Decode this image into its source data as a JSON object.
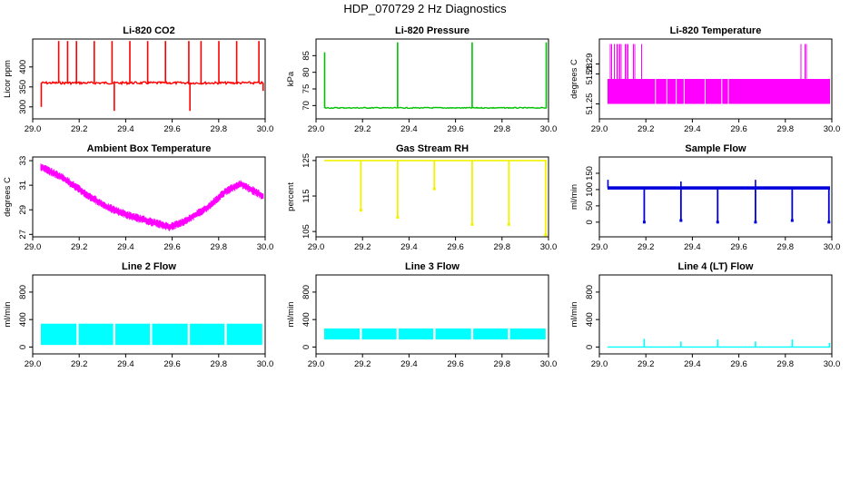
{
  "figure": {
    "title": "HDP_070729  2 Hz Diagnostics"
  },
  "chart_data": [
    {
      "type": "line",
      "title": "Li-820 CO2",
      "ylabel": "Licor ppm",
      "color": "#ff0000",
      "xlim": [
        29.0,
        30.0
      ],
      "ylim": [
        270,
        470
      ],
      "xticks": [
        "29.0",
        "29.2",
        "29.4",
        "29.6",
        "29.8",
        "30.0"
      ],
      "yticks": [
        {
          "value": 300,
          "label": "300"
        },
        {
          "value": 350,
          "label": "350"
        },
        {
          "value": 400,
          "label": "400"
        }
      ],
      "series": [
        {
          "name": "Li-820 CO2",
          "baseline": 360,
          "noise": 3,
          "spikes": [
            {
              "x": 29.002,
              "to": 300
            },
            {
              "x": 29.08,
              "to": 465
            },
            {
              "x": 29.12,
              "to": 465
            },
            {
              "x": 29.16,
              "to": 465
            },
            {
              "x": 29.24,
              "to": 465
            },
            {
              "x": 29.32,
              "to": 465
            },
            {
              "x": 29.33,
              "to": 290
            },
            {
              "x": 29.4,
              "to": 465
            },
            {
              "x": 29.48,
              "to": 465
            },
            {
              "x": 29.56,
              "to": 465
            },
            {
              "x": 29.665,
              "to": 465
            },
            {
              "x": 29.67,
              "to": 290
            },
            {
              "x": 29.72,
              "to": 465
            },
            {
              "x": 29.8,
              "to": 465
            },
            {
              "x": 29.88,
              "to": 465
            },
            {
              "x": 29.98,
              "to": 465
            },
            {
              "x": 29.999,
              "to": 340
            }
          ]
        }
      ]
    },
    {
      "type": "line",
      "title": "Li-820 Pressure",
      "ylabel": "kPa",
      "color": "#00c000",
      "xlim": [
        29.0,
        30.0
      ],
      "ylim": [
        66,
        90
      ],
      "xticks": [
        "29.0",
        "29.2",
        "29.4",
        "29.6",
        "29.8",
        "30.0"
      ],
      "yticks": [
        {
          "value": 70,
          "label": "70"
        },
        {
          "value": 75,
          "label": "75"
        },
        {
          "value": 80,
          "label": "80"
        },
        {
          "value": 85,
          "label": "85"
        }
      ],
      "series": [
        {
          "name": "Li-820 Pressure",
          "baseline": 69.3,
          "noise": 0.15,
          "spikes": [
            {
              "x": 29.002,
              "to": 86
            },
            {
              "x": 29.33,
              "to": 89
            },
            {
              "x": 29.665,
              "to": 89
            },
            {
              "x": 29.998,
              "to": 89
            }
          ]
        }
      ]
    },
    {
      "type": "line",
      "title": "Li-820 Temperature",
      "ylabel": "degrees C",
      "color": "#ff00ff",
      "xlim": [
        29.0,
        30.0
      ],
      "ylim": [
        51.235,
        51.315
      ],
      "xticks": [
        "29.0",
        "29.2",
        "29.4",
        "29.6",
        "29.8",
        "30.0"
      ],
      "yticks": [
        {
          "value": 51.25,
          "label": "51.25"
        },
        {
          "value": 51.28,
          "label": "51.28"
        },
        {
          "value": 51.29,
          "label": "51.29"
        }
      ],
      "series": [
        {
          "name": "Li-820 Temperature",
          "low": 51.25,
          "high": 51.275,
          "peak": 51.31
        }
      ]
    },
    {
      "type": "line",
      "title": "Ambient Box Temperature",
      "ylabel": "degrees C",
      "color": "#ff00ff",
      "xlim": [
        29.0,
        30.0
      ],
      "ylim": [
        26.8,
        33.3
      ],
      "xticks": [
        "29.0",
        "29.2",
        "29.4",
        "29.6",
        "29.8",
        "30.0"
      ],
      "yticks": [
        {
          "value": 27,
          "label": "27"
        },
        {
          "value": 29,
          "label": "29"
        },
        {
          "value": 31,
          "label": "31"
        },
        {
          "value": 33,
          "label": "33"
        }
      ],
      "series": [
        {
          "name": "Ambient Box Temperature",
          "band": 0.7,
          "x": [
            29.0,
            29.1,
            29.2,
            29.3,
            29.4,
            29.5,
            29.58,
            29.65,
            29.75,
            29.83,
            29.9,
            29.95,
            30.0
          ],
          "y": [
            32.5,
            31.6,
            30.3,
            29.2,
            28.5,
            28.0,
            27.6,
            28.1,
            29.2,
            30.5,
            31.1,
            30.6,
            30.1
          ]
        }
      ]
    },
    {
      "type": "line",
      "title": "Gas Stream RH",
      "ylabel": "percent",
      "color": "#f2f200",
      "xlim": [
        29.0,
        30.0
      ],
      "ylim": [
        103.5,
        126
      ],
      "xticks": [
        "29.0",
        "29.2",
        "29.4",
        "29.6",
        "29.8",
        "30.0"
      ],
      "yticks": [
        {
          "value": 105,
          "label": "105"
        },
        {
          "value": 115,
          "label": "115"
        },
        {
          "value": 125,
          "label": "125"
        }
      ],
      "series": [
        {
          "name": "Gas Stream RH",
          "baseline": 125,
          "dips": [
            {
              "x": 29.165,
              "to": 111
            },
            {
              "x": 29.33,
              "to": 109
            },
            {
              "x": 29.495,
              "to": 117
            },
            {
              "x": 29.665,
              "to": 107
            },
            {
              "x": 29.83,
              "to": 107
            },
            {
              "x": 29.995,
              "to": 104
            }
          ]
        }
      ]
    },
    {
      "type": "line",
      "title": "Sample Flow",
      "ylabel": "ml/min",
      "color": "#0000dd",
      "xlim": [
        29.0,
        30.0
      ],
      "ylim": [
        -45,
        200
      ],
      "xticks": [
        "29.0",
        "29.2",
        "29.4",
        "29.6",
        "29.8",
        "30.0"
      ],
      "yticks": [
        {
          "value": 0,
          "label": "0"
        },
        {
          "value": 50,
          "label": "50"
        },
        {
          "value": 100,
          "label": "100"
        },
        {
          "value": 150,
          "label": "150"
        }
      ],
      "series": [
        {
          "name": "Sample Flow",
          "baseline": 105,
          "band": 5,
          "dips": [
            {
              "x": 29.165,
              "to": 0
            },
            {
              "x": 29.33,
              "to": 5
            },
            {
              "x": 29.495,
              "to": 0
            },
            {
              "x": 29.665,
              "to": 0
            },
            {
              "x": 29.83,
              "to": 5
            },
            {
              "x": 29.995,
              "to": 0
            }
          ],
          "spikes": [
            {
              "x": 29.002,
              "to": 130
            },
            {
              "x": 29.33,
              "to": 125
            },
            {
              "x": 29.665,
              "to": 130
            }
          ]
        }
      ]
    },
    {
      "type": "area",
      "title": "Line 2 Flow",
      "ylabel": "ml/min",
      "color": "#00ffff",
      "xlim": [
        29.0,
        30.0
      ],
      "ylim": [
        -100,
        1050
      ],
      "xticks": [
        "29.0",
        "29.2",
        "29.4",
        "29.6",
        "29.8",
        "30.0"
      ],
      "yticks": [
        {
          "value": 0,
          "label": "0"
        },
        {
          "value": 400,
          "label": "400"
        },
        {
          "value": 800,
          "label": "800"
        }
      ],
      "series": [
        {
          "name": "Line 2 Flow",
          "low": 30,
          "high": 340,
          "gaps": [
            29.165,
            29.33,
            29.495,
            29.665,
            29.83
          ]
        }
      ]
    },
    {
      "type": "area",
      "title": "Line 3 Flow",
      "ylabel": "ml/min",
      "color": "#00ffff",
      "xlim": [
        29.0,
        30.0
      ],
      "ylim": [
        -100,
        1050
      ],
      "xticks": [
        "29.0",
        "29.2",
        "29.4",
        "29.6",
        "29.8",
        "30.0"
      ],
      "yticks": [
        {
          "value": 0,
          "label": "0"
        },
        {
          "value": 400,
          "label": "400"
        },
        {
          "value": 800,
          "label": "800"
        }
      ],
      "series": [
        {
          "name": "Line 3 Flow",
          "low": 110,
          "high": 270,
          "gaps": [
            29.165,
            29.33,
            29.495,
            29.665,
            29.83
          ]
        }
      ]
    },
    {
      "type": "line",
      "title": "Line 4 (LT) Flow",
      "ylabel": "ml/min",
      "color": "#00ffff",
      "xlim": [
        29.0,
        30.0
      ],
      "ylim": [
        -100,
        1050
      ],
      "xticks": [
        "29.0",
        "29.2",
        "29.4",
        "29.6",
        "29.8",
        "30.0"
      ],
      "yticks": [
        {
          "value": 0,
          "label": "0"
        },
        {
          "value": 400,
          "label": "400"
        },
        {
          "value": 800,
          "label": "800"
        }
      ],
      "series": [
        {
          "name": "Line 4 (LT) Flow",
          "baseline": 0,
          "spikes": [
            {
              "x": 29.165,
              "to": 120
            },
            {
              "x": 29.33,
              "to": 80
            },
            {
              "x": 29.495,
              "to": 110
            },
            {
              "x": 29.665,
              "to": 80
            },
            {
              "x": 29.83,
              "to": 110
            },
            {
              "x": 29.998,
              "to": 60
            }
          ]
        }
      ]
    }
  ]
}
